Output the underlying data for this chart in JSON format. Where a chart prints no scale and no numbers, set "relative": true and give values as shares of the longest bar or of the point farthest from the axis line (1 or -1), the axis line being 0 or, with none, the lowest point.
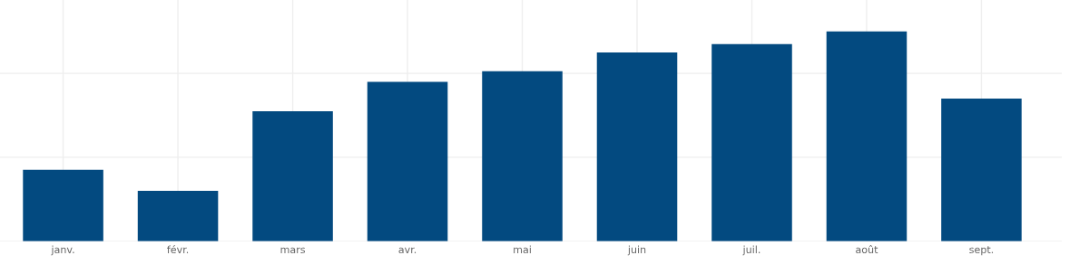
{
  "chart_data": {
    "type": "bar",
    "relative": true,
    "categories": [
      "janv.",
      "févr.",
      "mars",
      "avr.",
      "mai",
      "juin",
      "juil.",
      "août",
      "sept."
    ],
    "values": [
      0.34,
      0.24,
      0.62,
      0.76,
      0.81,
      0.9,
      0.94,
      1,
      0.68
    ],
    "color": "#034a80",
    "grid": true
  }
}
